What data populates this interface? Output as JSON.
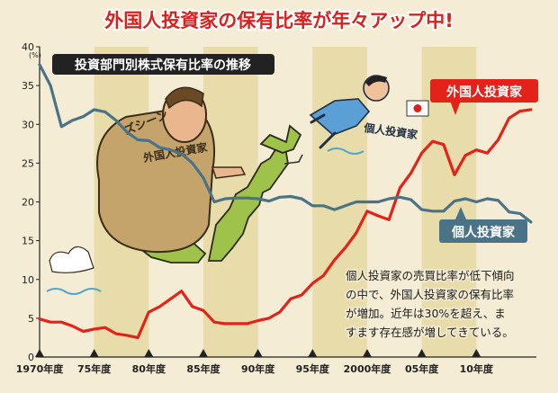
{
  "title": "外国人投資家の保有比率が年々アップ中!",
  "panel_label": "投資部門別株式保有比率の推移",
  "unit": "(%)",
  "annotation": "個人投資家の売買比率が低下傾向の中で、外国人投資家の保有比率が増加。近年は30%を超え、ますます存在感が増してきている。",
  "annotation_lines": [
    "個人投資家の売買比率が低下傾向",
    "の中で、外国人投資家の保有比率",
    "が増加。近年は30%を超え、ま",
    "すます存在感が増してきている。"
  ],
  "illustration_text": {
    "sound_effect": "ズシーン",
    "figure_foreign": "外国人投資家",
    "figure_individual": "個人投資家"
  },
  "colors": {
    "foreign": "#e32219",
    "individual": "#4b7387",
    "title": "#d9211e",
    "band": "#e8dcaa",
    "background": "#f4ecd4"
  },
  "chart_data": {
    "type": "line",
    "x": [
      1970,
      1971,
      1972,
      1973,
      1974,
      1975,
      1976,
      1977,
      1978,
      1979,
      1980,
      1981,
      1982,
      1983,
      1984,
      1985,
      1986,
      1987,
      1988,
      1989,
      1990,
      1991,
      1992,
      1993,
      1994,
      1995,
      1996,
      1997,
      1998,
      1999,
      2000,
      2001,
      2002,
      2003,
      2004,
      2005,
      2006,
      2007,
      2008,
      2009,
      2010,
      2011,
      2012,
      2013,
      2014,
      2015
    ],
    "series": [
      {
        "name": "外国人投資家",
        "color": "#e32219",
        "values": [
          4.9,
          4.5,
          4.5,
          4.0,
          3.3,
          3.6,
          3.8,
          3.0,
          2.8,
          2.5,
          5.8,
          6.5,
          7.5,
          8.5,
          6.5,
          6.0,
          4.5,
          4.3,
          4.3,
          4.3,
          4.7,
          5.0,
          5.8,
          7.5,
          8.0,
          9.5,
          10.5,
          12.5,
          14.1,
          16.0,
          18.8,
          18.2,
          17.7,
          21.8,
          23.7,
          26.3,
          27.8,
          27.4,
          23.5,
          26.0,
          26.7,
          26.3,
          28.0,
          30.8,
          31.7,
          31.9
        ]
      },
      {
        "name": "個人投資家",
        "color": "#4b7387",
        "values": [
          37.7,
          35.0,
          29.7,
          30.5,
          31.0,
          31.9,
          31.6,
          30.5,
          29.0,
          28.0,
          27.9,
          27.0,
          26.7,
          26.2,
          25.0,
          23.1,
          20.0,
          20.4,
          20.5,
          20.5,
          20.4,
          20.1,
          20.6,
          20.7,
          20.4,
          19.5,
          19.5,
          19.0,
          19.5,
          20.0,
          20.0,
          20.0,
          20.4,
          20.6,
          20.3,
          19.0,
          18.8,
          18.8,
          20.1,
          20.4,
          20.0,
          20.4,
          20.2,
          18.7,
          18.5,
          17.4
        ]
      }
    ],
    "ylim": [
      0,
      40
    ],
    "yticks": [
      0,
      5,
      10,
      15,
      20,
      25,
      30,
      35,
      40
    ],
    "xlim": [
      1970,
      2015.5
    ],
    "xticks": [
      {
        "value": 1970,
        "label": "1970年度"
      },
      {
        "value": 1975,
        "label": "75年度"
      },
      {
        "value": 1980,
        "label": "80年度"
      },
      {
        "value": 1985,
        "label": "85年度"
      },
      {
        "value": 1990,
        "label": "90年度"
      },
      {
        "value": 1995,
        "label": "95年度"
      },
      {
        "value": 2000,
        "label": "2000年度"
      },
      {
        "value": 2005,
        "label": "05年度"
      },
      {
        "value": 2010,
        "label": "10年度"
      }
    ],
    "bands": [
      [
        1975,
        1980
      ],
      [
        1985,
        1990
      ],
      [
        1995,
        2000
      ],
      [
        2005,
        2010
      ]
    ],
    "grid": false,
    "legend": "inline labels"
  }
}
